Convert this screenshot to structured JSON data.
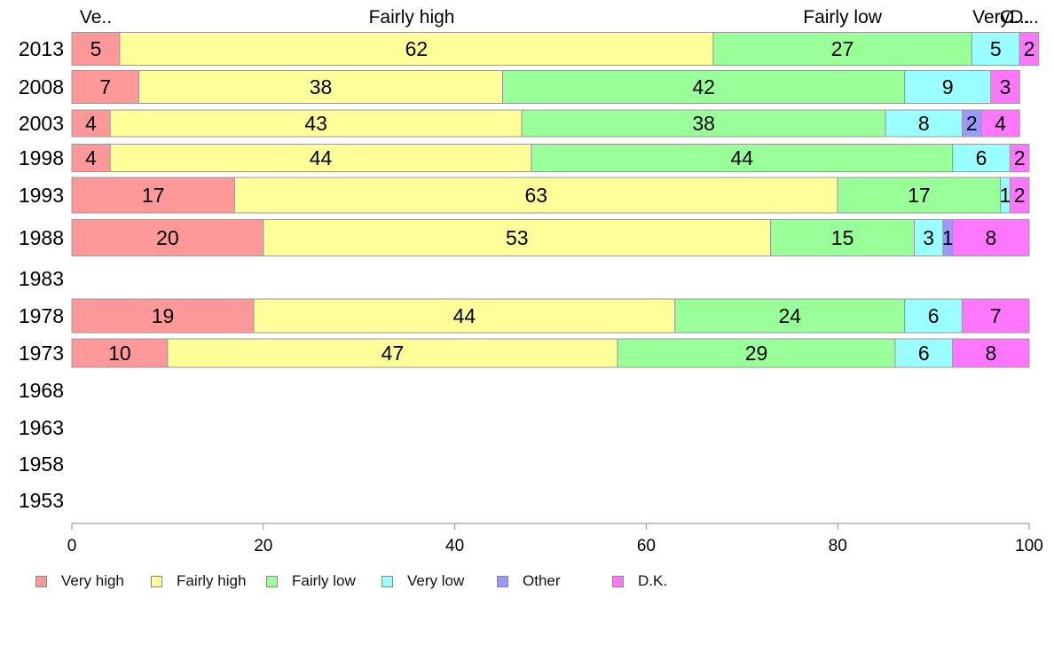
{
  "chart_data": {
    "type": "bar",
    "orientation": "horizontal",
    "stacked": true,
    "categories": [
      "2013",
      "2008",
      "2003",
      "1998",
      "1993",
      "1988",
      "1983",
      "1978",
      "1973",
      "1968",
      "1963",
      "1958",
      "1953"
    ],
    "series": [
      {
        "name": "Very high",
        "color": "#ff9999",
        "values": [
          5,
          7,
          4,
          4,
          17,
          20,
          null,
          19,
          10,
          null,
          null,
          null,
          null
        ]
      },
      {
        "name": "Fairly high",
        "color": "#ffff99",
        "values": [
          62,
          38,
          43,
          44,
          63,
          53,
          null,
          44,
          47,
          null,
          null,
          null,
          null
        ]
      },
      {
        "name": "Fairly low",
        "color": "#99ff99",
        "values": [
          27,
          42,
          38,
          44,
          17,
          15,
          null,
          24,
          29,
          null,
          null,
          null,
          null
        ]
      },
      {
        "name": "Very low",
        "color": "#99ffff",
        "values": [
          5,
          9,
          8,
          6,
          1,
          3,
          null,
          6,
          6,
          null,
          null,
          null,
          null
        ]
      },
      {
        "name": "Other",
        "color": "#9999ff",
        "values": [
          0,
          0,
          2,
          0,
          0,
          1,
          null,
          0,
          0,
          null,
          null,
          null,
          null
        ]
      },
      {
        "name": "D.K.",
        "color": "#ff77ff",
        "values": [
          2,
          3,
          4,
          2,
          2,
          8,
          null,
          7,
          8,
          null,
          null,
          null,
          null
        ]
      }
    ],
    "top_labels": [
      {
        "text": "Ve..",
        "x": 2.5
      },
      {
        "text": "Fairly high",
        "x": 35.5
      },
      {
        "text": "Fairly low",
        "x": 80.5
      },
      {
        "text": "Very..",
        "x": 96.5
      },
      {
        "text": "O...",
        "x": 98.5
      },
      {
        "text": "D...",
        "x": 99.5
      }
    ],
    "x_ticks": [
      "0",
      "20",
      "40",
      "60",
      "80",
      "100"
    ],
    "xlim": [
      0,
      100
    ],
    "grid": false,
    "legend_position": "bottom"
  }
}
